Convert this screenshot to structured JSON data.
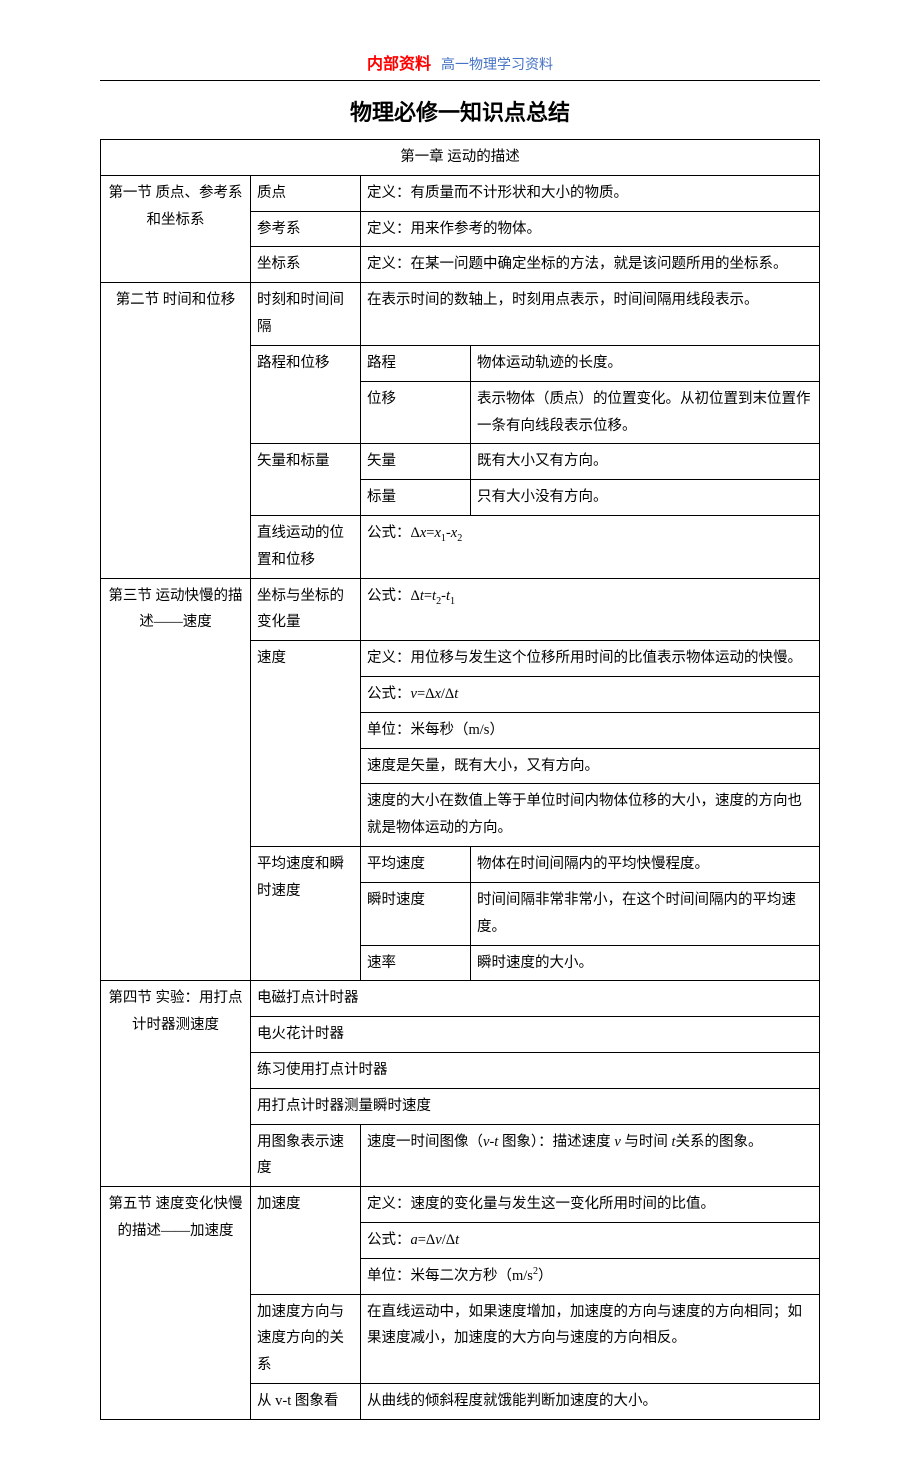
{
  "header": {
    "red": "内部资料",
    "blue": "高一物理学习资料"
  },
  "title": "物理必修一知识点总结",
  "chapter_header": "第一章 运动的描述",
  "s1": {
    "name": "第一节 质点、参考系和坐标系",
    "r1a": "质点",
    "r1b": "定义：有质量而不计形状和大小的物质。",
    "r2a": "参考系",
    "r2b": "定义：用来作参考的物体。",
    "r3a": "坐标系",
    "r3b": "定义：在某一问题中确定坐标的方法，就是该问题所用的坐标系。"
  },
  "s2": {
    "name": "第二节 时间和位移",
    "r1a": "时刻和时间间隔",
    "r1b": "在表示时间的数轴上，时刻用点表示，时间间隔用线段表示。",
    "r2a": "路程和位移",
    "r2b": "路程",
    "r2c": "物体运动轨迹的长度。",
    "r3b": "位移",
    "r3c": "表示物体（质点）的位置变化。从初位置到末位置作一条有向线段表示位移。",
    "r4a": "矢量和标量",
    "r4b": "矢量",
    "r4c": "既有大小又有方向。",
    "r5b": "标量",
    "r5c": "只有大小没有方向。",
    "r6a": "直线运动的位置和位移",
    "r6b_pre": "公式：Δ",
    "r6b_x": "x",
    "r6b_eq": "=",
    "r6b_x1": "x",
    "r6b_s1": "1",
    "r6b_minus": "-",
    "r6b_x2": "x",
    "r6b_s2": "2"
  },
  "s3": {
    "name": "第三节 运动快慢的描述——速度",
    "r1a": "坐标与坐标的变化量",
    "r1b_pre": "公式：Δ",
    "r1b_t": "t",
    "r1b_eq": "=",
    "r1b_t2": "t",
    "r1b_s2": "2",
    "r1b_minus": "-",
    "r1b_t1": "t",
    "r1b_s1": "1",
    "r2a": "速度",
    "r2b": "定义：用位移与发生这个位移所用时间的比值表示物体运动的快慢。",
    "r3b_pre": "公式：",
    "r3b_v": "v",
    "r3b_eq": "=Δ",
    "r3b_x": "x",
    "r3b_sl": "/Δ",
    "r3b_t": "t",
    "r4b": "单位：米每秒（m/s）",
    "r5b": "速度是矢量，既有大小，又有方向。",
    "r6b": "速度的大小在数值上等于单位时间内物体位移的大小，速度的方向也就是物体运动的方向。",
    "r7a": "平均速度和瞬时速度",
    "r7b": "平均速度",
    "r7c": "物体在时间间隔内的平均快慢程度。",
    "r8b": "瞬时速度",
    "r8c": "时间间隔非常非常小，在这个时间间隔内的平均速度。",
    "r9b": "速率",
    "r9c": "瞬时速度的大小。"
  },
  "s4": {
    "name": "第四节 实验：用打点计时器测速度",
    "r1a": "电磁打点计时器",
    "r2a": "电火花计时器",
    "r3a": "练习使用打点计时器",
    "r4a": "用打点计时器测量瞬时速度",
    "r5a": "用图象表示速度",
    "r5b_1": "速度一时间图像（",
    "r5b_v": "v",
    "r5b_dash": "-",
    "r5b_t": "t",
    "r5b_2": " 图象）：描述速度 ",
    "r5b_v2": "v",
    "r5b_3": " 与时间 ",
    "r5b_t2": "t",
    "r5b_4": "关系的图象。"
  },
  "s5": {
    "name": "第五节 速度变化快慢的描述——加速度",
    "r1a": "加速度",
    "r1b": "定义：速度的变化量与发生这一变化所用时间的比值。",
    "r2b_pre": "公式：",
    "r2b_a": "a",
    "r2b_eq": "=Δ",
    "r2b_v": "v",
    "r2b_sl": "/Δ",
    "r2b_t": "t",
    "r3b_1": "单位：米每二次方秒（m/s",
    "r3b_sup": "2",
    "r3b_2": "）",
    "r4a": "加速度方向与速度方向的关系",
    "r4b": "在直线运动中，如果速度增加，加速度的方向与速度的方向相同；如果速度减小，加速度的大方向与速度的方向相反。",
    "r5a": "从 v-t 图象看",
    "r5b": "从曲线的倾斜程度就饿能判断加速度的大小。"
  }
}
